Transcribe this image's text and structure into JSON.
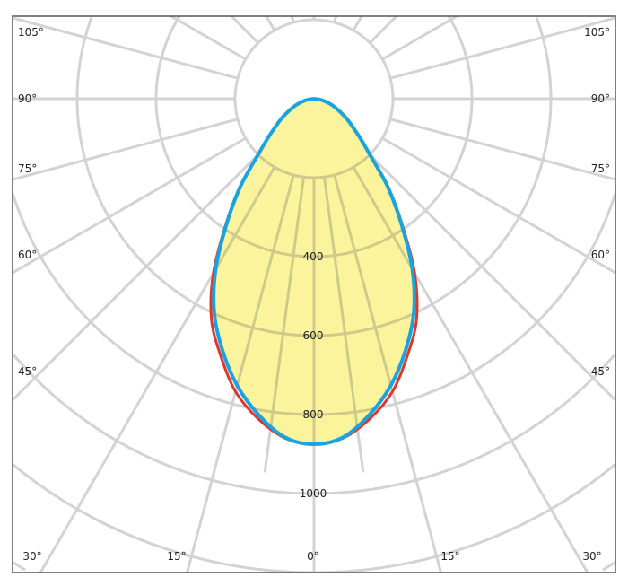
{
  "chart_data": {
    "type": "polar",
    "radial_ticks": [
      "400",
      "600",
      "800",
      "1000"
    ],
    "radial_grid_step": 200,
    "angle_labels_left": [
      "105°",
      "90°",
      "75°",
      "60°",
      "45°"
    ],
    "angle_labels_right": [
      "105°",
      "90°",
      "75°",
      "60°",
      "45°"
    ],
    "angle_labels_bottom": [
      "30°",
      "15°",
      "0°",
      "15°",
      "30°"
    ],
    "grid": true,
    "colors": {
      "fill": "#fbf49c",
      "series_blue": "#1aa3df",
      "series_red": "#e0372a",
      "grid": "#d3d3d3",
      "frame": "#555555"
    },
    "series": [
      {
        "color": "#e0372a",
        "angles": [
          0,
          5,
          10,
          15,
          20,
          25,
          30,
          35,
          40,
          45,
          50,
          55,
          60,
          70,
          80,
          90
        ],
        "values": [
          875,
          862,
          822,
          768,
          692,
          615,
          510,
          390,
          292,
          200,
          150,
          115,
          90,
          50,
          20,
          0
        ]
      },
      {
        "color": "#1aa3df",
        "angles": [
          0,
          5,
          10,
          15,
          20,
          25,
          30,
          35,
          40,
          45,
          50,
          55,
          60,
          70,
          80,
          90
        ],
        "values": [
          875,
          860,
          812,
          752,
          678,
          598,
          498,
          385,
          290,
          200,
          150,
          115,
          90,
          50,
          20,
          0
        ]
      }
    ]
  }
}
